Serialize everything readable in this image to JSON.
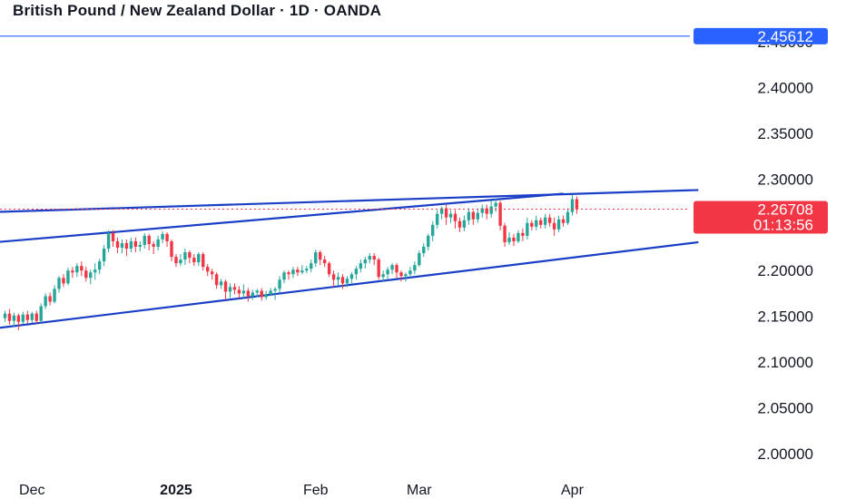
{
  "header": {
    "title": "British Pound / New Zealand Dollar · 1D · OANDA"
  },
  "price_labels": {
    "alert_price": "2.45612",
    "current_price": "2.26708",
    "countdown": "01:13:56"
  },
  "colors": {
    "up": "#26a69a",
    "down": "#f23645",
    "trendline": "#1a3fc6",
    "alert_line": "#2962ff",
    "current_line": "#f23645",
    "text": "#131722"
  },
  "chart_data": {
    "type": "candlestick",
    "title": "British Pound / New Zealand Dollar · 1D · OANDA",
    "y_axis": {
      "position": "right",
      "range": [
        1.975,
        2.48
      ],
      "ticks": [
        "2.45000",
        "2.40000",
        "2.35000",
        "2.30000",
        "2.25000",
        "2.20000",
        "2.15000",
        "2.10000",
        "2.05000",
        "2.00000"
      ]
    },
    "x_axis": {
      "ticks": [
        {
          "label": "Dec",
          "bold": false,
          "index": 6
        },
        {
          "label": "2025",
          "bold": true,
          "index": 38
        },
        {
          "label": "Feb",
          "bold": false,
          "index": 69
        },
        {
          "label": "Mar",
          "bold": false,
          "index": 92
        },
        {
          "label": "Apr",
          "bold": false,
          "index": 126
        }
      ]
    },
    "alert_line": 2.45612,
    "current_price": 2.26708,
    "trendlines": [
      {
        "from": {
          "index": -2,
          "price": 2.264
        },
        "to": {
          "index": 154,
          "price": 2.288
        }
      },
      {
        "from": {
          "index": -2,
          "price": 2.231
        },
        "to": {
          "index": 124,
          "price": 2.284
        }
      },
      {
        "from": {
          "index": -2,
          "price": 2.137
        },
        "to": {
          "index": 154,
          "price": 2.231
        }
      }
    ],
    "candles": [
      [
        2.148,
        2.153,
        2.144,
        2.156
      ],
      [
        2.153,
        2.145,
        2.141,
        2.158
      ],
      [
        2.145,
        2.151,
        2.139,
        2.154
      ],
      [
        2.151,
        2.144,
        2.135,
        2.153
      ],
      [
        2.144,
        2.152,
        2.141,
        2.155
      ],
      [
        2.152,
        2.146,
        2.142,
        2.156
      ],
      [
        2.146,
        2.153,
        2.143,
        2.155
      ],
      [
        2.153,
        2.145,
        2.142,
        2.156
      ],
      [
        2.145,
        2.161,
        2.143,
        2.164
      ],
      [
        2.161,
        2.172,
        2.158,
        2.175
      ],
      [
        2.172,
        2.166,
        2.162,
        2.176
      ],
      [
        2.166,
        2.18,
        2.164,
        2.184
      ],
      [
        2.18,
        2.192,
        2.176,
        2.194
      ],
      [
        2.192,
        2.186,
        2.182,
        2.196
      ],
      [
        2.186,
        2.2,
        2.184,
        2.203
      ],
      [
        2.2,
        2.198,
        2.192,
        2.204
      ],
      [
        2.198,
        2.205,
        2.193,
        2.208
      ],
      [
        2.205,
        2.2,
        2.194,
        2.21
      ],
      [
        2.2,
        2.192,
        2.188,
        2.204
      ],
      [
        2.192,
        2.198,
        2.185,
        2.201
      ],
      [
        2.198,
        2.201,
        2.19,
        2.208
      ],
      [
        2.201,
        2.21,
        2.196,
        2.213
      ],
      [
        2.21,
        2.224,
        2.205,
        2.228
      ],
      [
        2.224,
        2.241,
        2.22,
        2.244
      ],
      [
        2.241,
        2.232,
        2.226,
        2.244
      ],
      [
        2.232,
        2.225,
        2.219,
        2.236
      ],
      [
        2.225,
        2.23,
        2.219,
        2.234
      ],
      [
        2.23,
        2.224,
        2.216,
        2.234
      ],
      [
        2.224,
        2.232,
        2.22,
        2.236
      ],
      [
        2.232,
        2.226,
        2.22,
        2.236
      ],
      [
        2.226,
        2.228,
        2.221,
        2.232
      ],
      [
        2.228,
        2.238,
        2.224,
        2.241
      ],
      [
        2.238,
        2.229,
        2.222,
        2.24
      ],
      [
        2.229,
        2.226,
        2.218,
        2.232
      ],
      [
        2.226,
        2.234,
        2.222,
        2.238
      ],
      [
        2.234,
        2.24,
        2.23,
        2.243
      ],
      [
        2.24,
        2.232,
        2.226,
        2.242
      ],
      [
        2.232,
        2.215,
        2.21,
        2.234
      ],
      [
        2.215,
        2.208,
        2.204,
        2.218
      ],
      [
        2.208,
        2.212,
        2.205,
        2.218
      ],
      [
        2.212,
        2.22,
        2.206,
        2.224
      ],
      [
        2.22,
        2.214,
        2.208,
        2.222
      ],
      [
        2.214,
        2.209,
        2.205,
        2.218
      ],
      [
        2.209,
        2.218,
        2.205,
        2.22
      ],
      [
        2.218,
        2.204,
        2.2,
        2.22
      ],
      [
        2.204,
        2.199,
        2.194,
        2.207
      ],
      [
        2.199,
        2.196,
        2.19,
        2.202
      ],
      [
        2.196,
        2.184,
        2.18,
        2.198
      ],
      [
        2.184,
        2.188,
        2.18,
        2.191
      ],
      [
        2.188,
        2.177,
        2.168,
        2.19
      ],
      [
        2.177,
        2.182,
        2.17,
        2.186
      ],
      [
        2.182,
        2.179,
        2.174,
        2.186
      ],
      [
        2.179,
        2.175,
        2.17,
        2.183
      ],
      [
        2.175,
        2.178,
        2.17,
        2.185
      ],
      [
        2.178,
        2.172,
        2.166,
        2.181
      ],
      [
        2.172,
        2.176,
        2.168,
        2.179
      ],
      [
        2.176,
        2.178,
        2.171,
        2.18
      ],
      [
        2.178,
        2.171,
        2.167,
        2.181
      ],
      [
        2.171,
        2.174,
        2.168,
        2.178
      ],
      [
        2.174,
        2.178,
        2.172,
        2.181
      ],
      [
        2.178,
        2.18,
        2.168,
        2.182
      ],
      [
        2.18,
        2.19,
        2.176,
        2.194
      ],
      [
        2.19,
        2.198,
        2.186,
        2.2
      ],
      [
        2.198,
        2.196,
        2.19,
        2.2
      ],
      [
        2.196,
        2.201,
        2.192,
        2.204
      ],
      [
        2.201,
        2.198,
        2.194,
        2.204
      ],
      [
        2.198,
        2.2,
        2.196,
        2.206
      ],
      [
        2.2,
        2.202,
        2.197,
        2.205
      ],
      [
        2.202,
        2.208,
        2.198,
        2.212
      ],
      [
        2.208,
        2.22,
        2.204,
        2.223
      ],
      [
        2.22,
        2.212,
        2.206,
        2.222
      ],
      [
        2.212,
        2.208,
        2.204,
        2.216
      ],
      [
        2.208,
        2.196,
        2.193,
        2.21
      ],
      [
        2.196,
        2.19,
        2.182,
        2.2
      ],
      [
        2.19,
        2.193,
        2.184,
        2.198
      ],
      [
        2.193,
        2.186,
        2.18,
        2.196
      ],
      [
        2.186,
        2.191,
        2.182,
        2.194
      ],
      [
        2.191,
        2.196,
        2.186,
        2.198
      ],
      [
        2.196,
        2.202,
        2.19,
        2.205
      ],
      [
        2.202,
        2.208,
        2.198,
        2.212
      ],
      [
        2.208,
        2.212,
        2.202,
        2.215
      ],
      [
        2.212,
        2.216,
        2.208,
        2.219
      ],
      [
        2.216,
        2.212,
        2.206,
        2.219
      ],
      [
        2.212,
        2.193,
        2.19,
        2.214
      ],
      [
        2.193,
        2.196,
        2.188,
        2.2
      ],
      [
        2.196,
        2.201,
        2.19,
        2.204
      ],
      [
        2.201,
        2.206,
        2.196,
        2.208
      ],
      [
        2.206,
        2.198,
        2.192,
        2.208
      ],
      [
        2.198,
        2.194,
        2.188,
        2.2
      ],
      [
        2.194,
        2.196,
        2.188,
        2.198
      ],
      [
        2.196,
        2.2,
        2.192,
        2.204
      ],
      [
        2.2,
        2.206,
        2.196,
        2.21
      ],
      [
        2.206,
        2.219,
        2.204,
        2.222
      ],
      [
        2.219,
        2.226,
        2.215,
        2.23
      ],
      [
        2.226,
        2.238,
        2.222,
        2.24
      ],
      [
        2.238,
        2.25,
        2.232,
        2.254
      ],
      [
        2.25,
        2.262,
        2.246,
        2.266
      ],
      [
        2.262,
        2.268,
        2.256,
        2.27
      ],
      [
        2.268,
        2.258,
        2.25,
        2.272
      ],
      [
        2.258,
        2.262,
        2.252,
        2.266
      ],
      [
        2.262,
        2.254,
        2.246,
        2.266
      ],
      [
        2.254,
        2.247,
        2.242,
        2.258
      ],
      [
        2.247,
        2.255,
        2.243,
        2.26
      ],
      [
        2.255,
        2.264,
        2.25,
        2.268
      ],
      [
        2.264,
        2.256,
        2.25,
        2.266
      ],
      [
        2.256,
        2.263,
        2.252,
        2.268
      ],
      [
        2.263,
        2.268,
        2.258,
        2.272
      ],
      [
        2.268,
        2.262,
        2.256,
        2.272
      ],
      [
        2.262,
        2.27,
        2.258,
        2.276
      ],
      [
        2.27,
        2.274,
        2.264,
        2.279
      ],
      [
        2.274,
        2.249,
        2.244,
        2.276
      ],
      [
        2.249,
        2.231,
        2.226,
        2.252
      ],
      [
        2.231,
        2.236,
        2.228,
        2.242
      ],
      [
        2.236,
        2.232,
        2.227,
        2.24
      ],
      [
        2.232,
        2.241,
        2.23,
        2.244
      ],
      [
        2.241,
        2.238,
        2.232,
        2.246
      ],
      [
        2.238,
        2.252,
        2.234,
        2.258
      ],
      [
        2.252,
        2.248,
        2.244,
        2.255
      ],
      [
        2.248,
        2.255,
        2.244,
        2.26
      ],
      [
        2.255,
        2.25,
        2.246,
        2.258
      ],
      [
        2.25,
        2.258,
        2.246,
        2.262
      ],
      [
        2.258,
        2.252,
        2.248,
        2.262
      ],
      [
        2.252,
        2.245,
        2.238,
        2.258
      ],
      [
        2.245,
        2.256,
        2.242,
        2.26
      ],
      [
        2.256,
        2.252,
        2.248,
        2.26
      ],
      [
        2.252,
        2.264,
        2.25,
        2.268
      ],
      [
        2.264,
        2.278,
        2.26,
        2.283
      ],
      [
        2.278,
        2.267,
        2.262,
        2.281
      ]
    ]
  }
}
